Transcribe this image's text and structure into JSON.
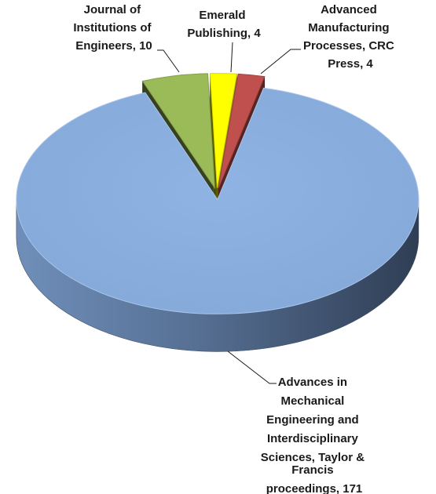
{
  "chart_data": {
    "type": "pie",
    "three_d": true,
    "exploded": true,
    "legend": "none",
    "slices": [
      {
        "label": [
          "Advances in",
          "Mechanical",
          "Engineering and",
          "Interdisciplinary",
          "Sciences, Taylor &",
          "Francis",
          "proceedings, 171"
        ],
        "value": 171,
        "color": "#8db0df"
      },
      {
        "label": [
          "Journal of",
          "Institutions of",
          "Engineers, 10"
        ],
        "value": 10,
        "color": "#9bbb59"
      },
      {
        "label": [
          "Emerald",
          "Publishing, 4"
        ],
        "value": 4,
        "color": "#ffff00"
      },
      {
        "label": [
          "Advanced",
          "Manufacturing",
          "Processes, CRC",
          "Press, 4"
        ],
        "value": 4,
        "color": "#c0504d"
      }
    ]
  }
}
